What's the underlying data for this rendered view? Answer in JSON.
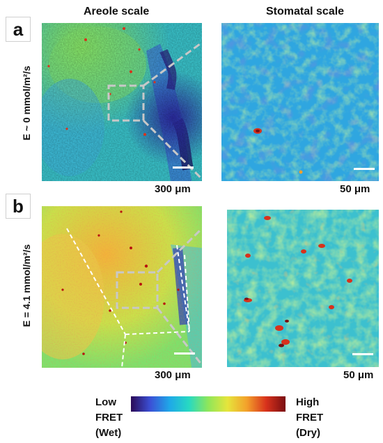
{
  "column_titles": {
    "left": "Areole scale",
    "right": "Stomatal scale"
  },
  "panels": {
    "a": {
      "letter": "a",
      "condition": "E ~ 0 mmol/m²/s",
      "left_scale": "300 μm",
      "right_scale": "50 μm"
    },
    "b": {
      "letter": "b",
      "condition": "E = 4.1 mmol/m²/s",
      "left_scale": "300 μm",
      "right_scale": "50 μm"
    }
  },
  "colorbar": {
    "low": [
      "Low",
      "FRET",
      "(Wet)"
    ],
    "high": [
      "High",
      "FRET",
      "(Dry)"
    ],
    "colormap": [
      "#2b0a57",
      "#3b50d6",
      "#1fa8e8",
      "#27d9c2",
      "#8fe65a",
      "#e6e53c",
      "#f3a02b",
      "#d8321c",
      "#7a0e12"
    ]
  },
  "colors": {
    "zoom_indicator": "#c8c8c8",
    "vein_outline": "#ffffff",
    "scale_bar": "#ffffff"
  }
}
